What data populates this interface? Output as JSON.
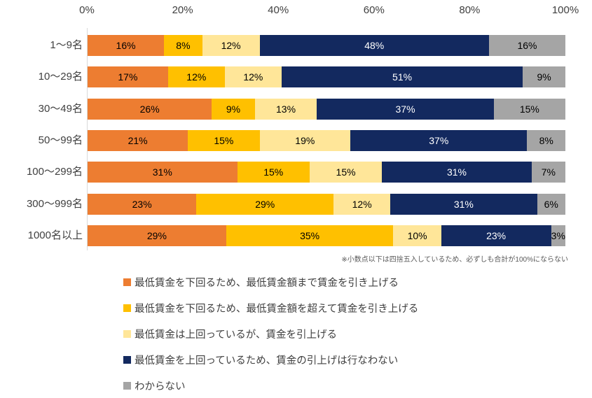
{
  "chart_data": {
    "type": "bar",
    "subtype": "horizontal-stacked-100",
    "title": "",
    "xlabel": "",
    "ylabel": "",
    "x_axis": {
      "ticks": [
        "0%",
        "20%",
        "40%",
        "60%",
        "80%",
        "100%"
      ],
      "range": [
        0,
        100
      ],
      "grid": false
    },
    "categories": [
      "1〜9名",
      "10〜29名",
      "30〜49名",
      "50〜99名",
      "100〜299名",
      "300〜999名",
      "1000名以上"
    ],
    "series": [
      {
        "name": "最低賃金を下回るため、最低賃金額まで賃金を引き上げる",
        "color": "#ED7D31",
        "label_color": "#000000",
        "values": [
          16,
          17,
          26,
          21,
          31,
          23,
          29
        ]
      },
      {
        "name": "最低賃金を下回るため、最低賃金額を超えて賃金を引き上げる",
        "color": "#FFC000",
        "label_color": "#000000",
        "values": [
          8,
          12,
          9,
          15,
          15,
          29,
          35
        ]
      },
      {
        "name": "最低賃金は上回っているが、賃金を引上げる",
        "color": "#FFE699",
        "label_color": "#000000",
        "values": [
          12,
          12,
          13,
          19,
          15,
          12,
          10
        ]
      },
      {
        "name": "最低賃金を上回っているため、賃金の引上げは行なわない",
        "color": "#13295F",
        "label_color": "#FFFFFF",
        "values": [
          48,
          51,
          37,
          37,
          31,
          31,
          23
        ]
      },
      {
        "name": "わからない",
        "color": "#A5A5A5",
        "label_color": "#000000",
        "values": [
          16,
          9,
          15,
          8,
          7,
          6,
          3
        ]
      }
    ],
    "value_suffix": "%",
    "note": "※小数点以下は四捨五入しているため、必ずしも合計が100%にならない",
    "legend_position": "bottom-left",
    "axis_line_color": "#D9D9D9"
  }
}
